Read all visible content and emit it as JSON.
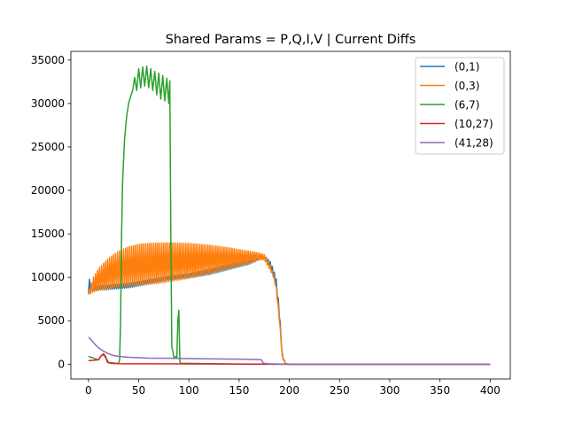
{
  "chart_data": {
    "type": "line",
    "title": "Shared Params = P,Q,I,V | Current Diffs",
    "xlabel": "",
    "ylabel": "",
    "xlim": [
      -17.5,
      420
    ],
    "ylim": [
      -1700,
      36000
    ],
    "x_ticks": [
      0,
      50,
      100,
      150,
      200,
      250,
      300,
      350,
      400
    ],
    "y_ticks": [
      0,
      5000,
      10000,
      15000,
      20000,
      25000,
      30000,
      35000
    ],
    "x_tick_labels": [
      "0",
      "50",
      "100",
      "150",
      "200",
      "250",
      "300",
      "350",
      "400"
    ],
    "y_tick_labels": [
      "0",
      "5000",
      "10000",
      "15000",
      "20000",
      "25000",
      "30000",
      "35000"
    ],
    "grid": false,
    "legend_position": "top-right",
    "series": [
      {
        "name": "(0,1)",
        "color": "#1f77b4",
        "oscillating": true,
        "x": [
          0,
          5,
          10,
          20,
          30,
          40,
          60,
          80,
          100,
          120,
          140,
          160,
          170,
          175,
          178,
          181,
          184,
          187,
          190,
          193,
          196,
          200,
          250,
          300,
          350,
          400
        ],
        "low": [
          8200,
          8400,
          8500,
          8600,
          8700,
          8800,
          9200,
          9600,
          9900,
          10300,
          10900,
          11500,
          12000,
          12200,
          11500,
          11000,
          10200,
          9000,
          5500,
          800,
          50,
          0,
          0,
          0,
          0,
          0
        ],
        "high": [
          10000,
          8900,
          9000,
          9100,
          9200,
          9300,
          9700,
          10100,
          10400,
          10900,
          11500,
          12000,
          12400,
          12500,
          12200,
          11800,
          11000,
          9800,
          6500,
          1200,
          100,
          0,
          0,
          0,
          0,
          0
        ]
      },
      {
        "name": "(0,3)",
        "color": "#ff7f0e",
        "oscillating": true,
        "x": [
          0,
          5,
          10,
          20,
          30,
          40,
          50,
          60,
          70,
          80,
          100,
          120,
          140,
          160,
          170,
          175,
          178,
          181,
          184,
          187,
          190,
          193,
          196,
          200,
          250,
          300,
          350,
          400
        ],
        "low": [
          8000,
          8300,
          8500,
          8700,
          8900,
          9000,
          9100,
          9200,
          9300,
          9500,
          9900,
          10400,
          11000,
          11600,
          12000,
          12000,
          11400,
          10800,
          10000,
          8600,
          5000,
          700,
          50,
          0,
          0,
          0,
          0,
          0
        ],
        "high": [
          8200,
          10000,
          11000,
          12200,
          13000,
          13500,
          13800,
          13900,
          13950,
          13950,
          13900,
          13700,
          13400,
          13000,
          12800,
          12600,
          12000,
          11400,
          10400,
          9000,
          5600,
          1000,
          100,
          0,
          0,
          0,
          0,
          0
        ]
      },
      {
        "name": "(6,7)",
        "color": "#2ca02c",
        "oscillating": false,
        "x": [
          0,
          5,
          10,
          12,
          15,
          18,
          20,
          24,
          28,
          30,
          31,
          32,
          33,
          34,
          36,
          38,
          40,
          42,
          44,
          46,
          48,
          50,
          52,
          54,
          56,
          58,
          60,
          62,
          64,
          66,
          68,
          70,
          72,
          74,
          76,
          78,
          80,
          81,
          82,
          83,
          84,
          85,
          86,
          87,
          88,
          89,
          90,
          91,
          92,
          100,
          150,
          200,
          250,
          300,
          350,
          400
        ],
        "y": [
          900,
          700,
          500,
          900,
          1100,
          600,
          200,
          150,
          100,
          100,
          500,
          5000,
          15000,
          21000,
          26000,
          28500,
          30000,
          30800,
          31500,
          33000,
          31500,
          34000,
          31800,
          34200,
          32000,
          34300,
          31800,
          34000,
          31500,
          33700,
          31000,
          33500,
          30500,
          33200,
          30300,
          32900,
          30000,
          32600,
          15000,
          2000,
          1500,
          800,
          700,
          900,
          800,
          5000,
          6200,
          300,
          100,
          100,
          0,
          0,
          0,
          0,
          0,
          0
        ]
      },
      {
        "name": "(10,27)",
        "color": "#d62728",
        "oscillating": false,
        "x": [
          0,
          5,
          10,
          13,
          15,
          17,
          19,
          22,
          25,
          30,
          40,
          60,
          100,
          150,
          200,
          250,
          300,
          350,
          400
        ],
        "y": [
          400,
          450,
          500,
          1000,
          1200,
          900,
          200,
          100,
          80,
          60,
          50,
          40,
          30,
          20,
          0,
          0,
          0,
          0,
          0
        ]
      },
      {
        "name": "(41,28)",
        "color": "#9467bd",
        "oscillating": false,
        "x": [
          0,
          2,
          5,
          8,
          10,
          15,
          20,
          25,
          30,
          35,
          40,
          50,
          60,
          80,
          100,
          120,
          150,
          172,
          174,
          176,
          180,
          190,
          200,
          250,
          300,
          350,
          400
        ],
        "y": [
          3100,
          2900,
          2500,
          2100,
          1900,
          1500,
          1200,
          1000,
          900,
          850,
          800,
          750,
          700,
          680,
          650,
          620,
          580,
          520,
          150,
          80,
          40,
          20,
          0,
          0,
          0,
          0,
          0
        ]
      }
    ]
  }
}
